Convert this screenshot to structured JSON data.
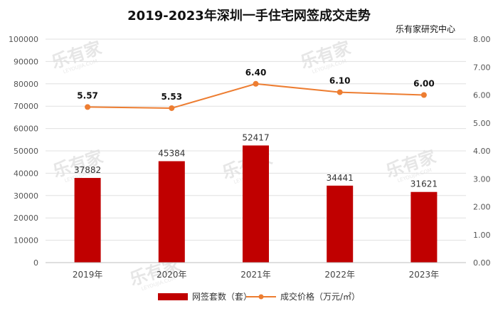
{
  "chart_data": {
    "type": "bar+line",
    "title": "2019-2023年深圳一手住宅网签成交走势",
    "source": "乐有家研究中心",
    "categories": [
      "2019年",
      "2020年",
      "2021年",
      "2022年",
      "2023年"
    ],
    "series": [
      {
        "name": "网签套数（套）",
        "type": "bar",
        "axis": "left",
        "color": "#c00000",
        "values": [
          37882,
          45384,
          52417,
          34441,
          31621
        ]
      },
      {
        "name": "成交价格（万元/㎡）",
        "type": "line",
        "axis": "right",
        "color": "#ed7d31",
        "values": [
          5.57,
          5.53,
          6.4,
          6.1,
          6.0
        ]
      }
    ],
    "y_left": {
      "min": 0,
      "max": 100000,
      "step": 10000
    },
    "y_right": {
      "min": 0,
      "max": 8,
      "step": 1,
      "decimals": 2
    },
    "legend_position": "bottom"
  },
  "watermark": {
    "text": "乐有家",
    "subtext": "LEYOUJIA.COM"
  }
}
